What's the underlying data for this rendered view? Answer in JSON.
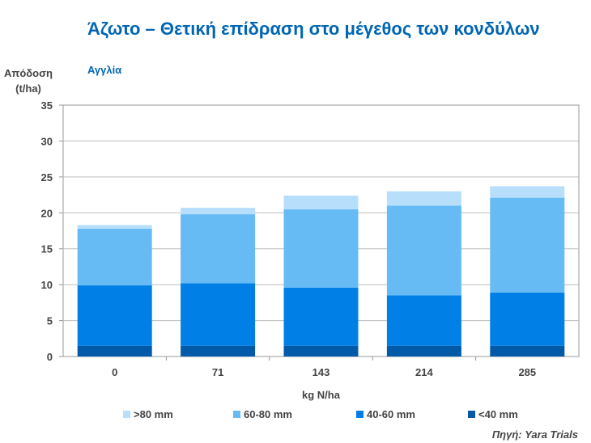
{
  "chart_data": {
    "type": "bar",
    "stacked": true,
    "title": "Άζωτο – Θετική επίδραση στο μέγεθος των κονδύλων",
    "subtitle": "Αγγλία",
    "ylabel": "Απόδοση (t/ha)",
    "xlabel": "kg N/ha",
    "source": "Πηγή: Yara Trials",
    "categories": [
      "0",
      "71",
      "143",
      "214",
      "285"
    ],
    "ylim": [
      0,
      35
    ],
    "yticks": [
      0,
      5,
      10,
      15,
      20,
      25,
      30,
      35
    ],
    "grid": true,
    "legend_position": "bottom",
    "series": [
      {
        "name": "<40 mm",
        "color": "#005aa7",
        "values": [
          1.5,
          1.5,
          1.5,
          1.5,
          1.5
        ]
      },
      {
        "name": "40-60 mm",
        "color": "#0080e6",
        "values": [
          8.4,
          8.7,
          8.1,
          7.0,
          7.4
        ]
      },
      {
        "name": "60-80 mm",
        "color": "#66bbf5",
        "values": [
          7.9,
          9.6,
          10.9,
          12.5,
          13.2
        ]
      },
      {
        "name": ">80 mm",
        "color": "#b7dffb",
        "values": [
          0.5,
          0.9,
          1.9,
          2.0,
          1.6
        ]
      }
    ],
    "legend_order": [
      ">80 mm",
      "60-80 mm",
      "40-60 mm",
      "<40 mm"
    ]
  }
}
